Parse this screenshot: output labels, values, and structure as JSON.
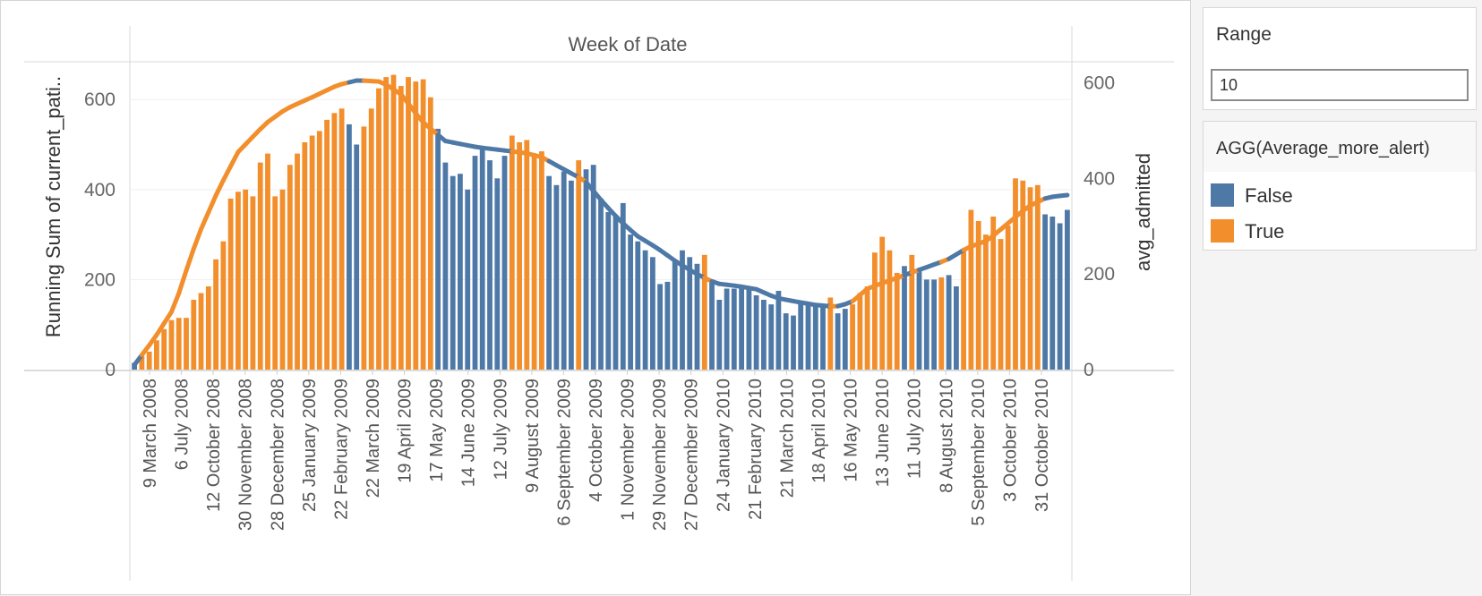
{
  "chart_data": {
    "type": "bar",
    "title": "Week of Date",
    "xlabel": "",
    "ylabel": "Running Sum of current_pati..",
    "ylabel_right": "avg_admitted",
    "ylim": [
      0,
      680
    ],
    "ylim_right": [
      0,
      640
    ],
    "yticks": [
      0,
      200,
      400,
      600
    ],
    "yticks_right": [
      0,
      200,
      400,
      600
    ],
    "gridlines": true,
    "legend_position": "right",
    "x_tick_labels": [
      "9 March 2008",
      "6 July 2008",
      "12 October 2008",
      "30 November 2008",
      "28 December 2008",
      "25 January 2009",
      "22 February 2009",
      "22 March 2009",
      "19 April 2009",
      "17 May 2009",
      "14 June 2009",
      "12 July 2009",
      "9 August 2009",
      "6 September 2009",
      "4 October 2009",
      "1 November 2009",
      "29 November 2009",
      "27 December 2009",
      "24 January 2010",
      "21 February 2010",
      "21 March 2010",
      "18 April 2010",
      "16 May 2010",
      "13 June 2010",
      "11 July 2010",
      "8 August 2010",
      "5 September 2010",
      "3 October 2010",
      "31 October 2010"
    ],
    "bar_values": [
      15,
      30,
      40,
      65,
      90,
      110,
      115,
      115,
      155,
      170,
      185,
      245,
      285,
      380,
      395,
      400,
      385,
      460,
      480,
      385,
      400,
      455,
      480,
      505,
      520,
      530,
      555,
      570,
      580,
      545,
      500,
      540,
      580,
      625,
      650,
      655,
      630,
      650,
      640,
      645,
      605,
      535,
      460,
      430,
      435,
      400,
      475,
      490,
      465,
      425,
      475,
      520,
      505,
      510,
      480,
      485,
      430,
      410,
      440,
      420,
      465,
      445,
      455,
      380,
      350,
      340,
      370,
      300,
      285,
      265,
      250,
      190,
      195,
      240,
      265,
      250,
      235,
      255,
      200,
      155,
      180,
      180,
      180,
      185,
      165,
      155,
      145,
      175,
      125,
      120,
      150,
      150,
      145,
      140,
      160,
      125,
      135,
      145,
      170,
      185,
      260,
      295,
      265,
      215,
      230,
      255,
      225,
      200,
      200,
      205,
      210,
      185,
      265,
      355,
      330,
      300,
      340,
      290,
      320,
      425,
      420,
      405,
      410,
      345,
      340,
      325,
      355
    ],
    "bar_flags": [
      false,
      true,
      true,
      true,
      true,
      true,
      true,
      true,
      true,
      true,
      true,
      true,
      true,
      true,
      true,
      true,
      true,
      true,
      true,
      true,
      true,
      true,
      true,
      true,
      true,
      true,
      true,
      true,
      true,
      false,
      false,
      true,
      true,
      true,
      true,
      true,
      true,
      true,
      true,
      true,
      true,
      false,
      false,
      false,
      false,
      false,
      false,
      false,
      false,
      false,
      false,
      true,
      true,
      true,
      true,
      true,
      false,
      false,
      false,
      false,
      true,
      false,
      false,
      false,
      false,
      false,
      false,
      false,
      false,
      false,
      false,
      false,
      false,
      false,
      false,
      false,
      false,
      true,
      false,
      false,
      false,
      false,
      false,
      false,
      false,
      false,
      false,
      false,
      false,
      false,
      false,
      false,
      false,
      false,
      true,
      false,
      false,
      true,
      true,
      true,
      true,
      true,
      true,
      true,
      false,
      true,
      false,
      false,
      false,
      true,
      false,
      false,
      true,
      true,
      true,
      true,
      true,
      true,
      true,
      true,
      true,
      true,
      true,
      false,
      false,
      false,
      false
    ],
    "line_knots": [
      [
        0,
        10
      ],
      [
        10,
        65
      ],
      [
        20,
        130
      ],
      [
        27,
        220
      ],
      [
        32,
        280
      ],
      [
        42,
        375
      ],
      [
        52,
        455
      ],
      [
        66,
        515
      ],
      [
        76,
        545
      ],
      [
        92,
        575
      ],
      [
        102,
        595
      ],
      [
        112,
        605
      ],
      [
        124,
        602
      ],
      [
        134,
        575
      ],
      [
        144,
        520
      ],
      [
        156,
        478
      ],
      [
        172,
        465
      ],
      [
        186,
        458
      ],
      [
        196,
        453
      ],
      [
        204,
        445
      ],
      [
        214,
        422
      ],
      [
        226,
        395
      ],
      [
        236,
        345
      ],
      [
        244,
        310
      ],
      [
        252,
        280
      ],
      [
        262,
        255
      ],
      [
        272,
        225
      ],
      [
        282,
        200
      ],
      [
        292,
        180
      ],
      [
        302,
        175
      ],
      [
        312,
        168
      ],
      [
        322,
        150
      ],
      [
        332,
        142
      ],
      [
        342,
        135
      ],
      [
        350,
        132
      ],
      [
        354,
        133
      ],
      [
        360,
        142
      ],
      [
        368,
        170
      ],
      [
        378,
        185
      ],
      [
        388,
        200
      ],
      [
        398,
        215
      ],
      [
        408,
        230
      ],
      [
        418,
        255
      ],
      [
        428,
        270
      ],
      [
        438,
        305
      ],
      [
        448,
        340
      ],
      [
        458,
        360
      ],
      [
        468,
        365
      ]
    ],
    "series": [
      {
        "name": "False",
        "color": "#4e79a7"
      },
      {
        "name": "True",
        "color": "#f28e2b"
      }
    ]
  },
  "range_filter": {
    "title": "Range",
    "value": "10"
  },
  "legend": {
    "title": "AGG(Average_more_alert)",
    "items": [
      {
        "label": "False",
        "color": "#4e79a7"
      },
      {
        "label": "True",
        "color": "#f28e2b"
      }
    ]
  }
}
